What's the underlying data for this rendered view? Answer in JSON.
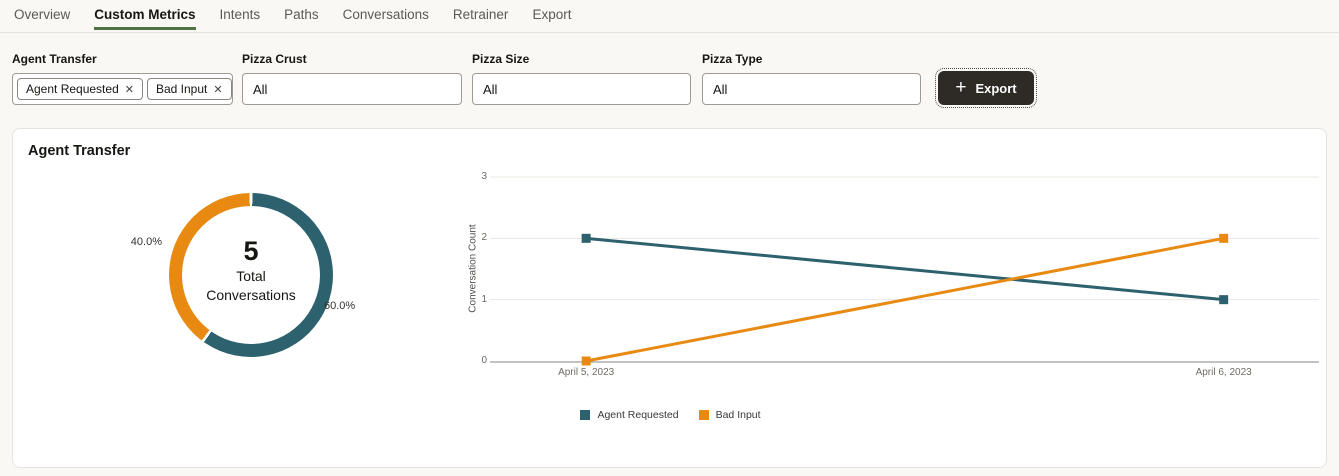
{
  "tabs": {
    "items": [
      {
        "label": "Overview"
      },
      {
        "label": "Custom Metrics"
      },
      {
        "label": "Intents"
      },
      {
        "label": "Paths"
      },
      {
        "label": "Conversations"
      },
      {
        "label": "Retrainer"
      },
      {
        "label": "Export"
      }
    ],
    "active": "Custom Metrics"
  },
  "filters": {
    "agent_transfer": {
      "label": "Agent Transfer",
      "chips": [
        {
          "label": "Agent Requested",
          "remove_icon": "✕"
        },
        {
          "label": "Bad Input",
          "remove_icon": "✕"
        }
      ]
    },
    "pizza_crust": {
      "label": "Pizza Crust",
      "value": "All"
    },
    "pizza_size": {
      "label": "Pizza Size",
      "value": "All"
    },
    "pizza_type": {
      "label": "Pizza Type",
      "value": "All"
    }
  },
  "export_button": {
    "label": "Export",
    "plus_icon": "+"
  },
  "card": {
    "title": "Agent Transfer"
  },
  "colors": {
    "teal": "#2d616d",
    "orange": "#e88a12",
    "tab_underline": "#507245",
    "export_button_bg": "#2e2b26",
    "gridline": "#e9e7e2",
    "axis_line": "#8a8680"
  },
  "chart_data": [
    {
      "type": "pie",
      "subtype": "donut",
      "title": "Agent Transfer",
      "slices": [
        {
          "label": "Agent Requested",
          "value_pct": 60.0,
          "display": "60.0%",
          "color": "#2d616d"
        },
        {
          "label": "Bad Input",
          "value_pct": 40.0,
          "display": "40.0%",
          "color": "#e88a12"
        }
      ],
      "center": {
        "value": "5",
        "label_line1": "Total",
        "label_line2": "Conversations"
      },
      "start_angle_deg": 0,
      "direction": "clockwise"
    },
    {
      "type": "line",
      "x": [
        "April 5, 2023",
        "April 6, 2023"
      ],
      "series": [
        {
          "name": "Agent Requested",
          "values": [
            2,
            1
          ],
          "color": "#2d616d"
        },
        {
          "name": "Bad Input",
          "values": [
            0,
            2
          ],
          "color": "#e88a12"
        }
      ],
      "title": "",
      "xlabel": "",
      "ylabel": "Conversation Count",
      "ylim": [
        0,
        3
      ],
      "yticks": [
        0,
        1,
        2,
        3
      ],
      "grid": "horizontal",
      "marker": "square",
      "legend_position": "bottom"
    }
  ]
}
